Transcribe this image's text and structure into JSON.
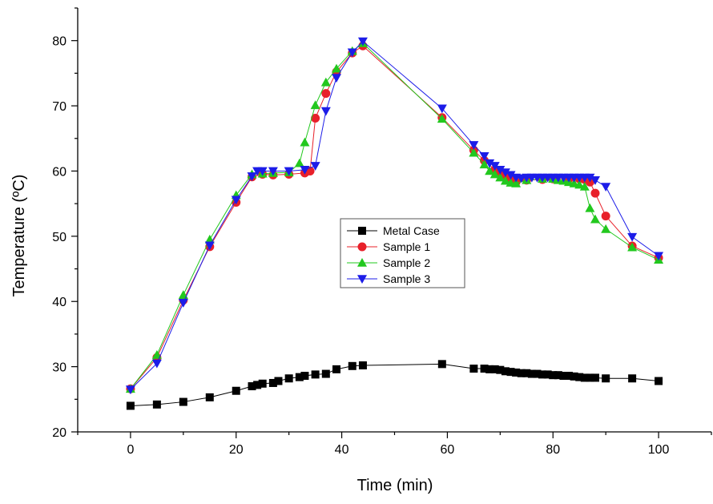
{
  "chart_data": {
    "type": "line",
    "title": "",
    "xlabel": "Time (min)",
    "ylabel": "Temperature (ºC)",
    "xlim": [
      -10,
      110
    ],
    "ylim": [
      20,
      85
    ],
    "xticks": [
      0,
      20,
      40,
      60,
      80,
      100
    ],
    "yticks": [
      20,
      30,
      40,
      50,
      60,
      70,
      80
    ],
    "xtick_labels": [
      "0",
      "20",
      "40",
      "60",
      "80",
      "100"
    ],
    "ytick_labels": [
      "20",
      "30",
      "40",
      "50",
      "60",
      "70",
      "80"
    ],
    "grid": false,
    "legend_position": "center-right",
    "series": [
      {
        "name": "Metal Case",
        "color": "#000000",
        "marker": "square",
        "x": [
          0,
          5,
          10,
          15,
          20,
          23,
          24,
          25,
          27,
          28,
          30,
          32,
          33,
          35,
          37,
          39,
          42,
          44,
          59,
          65,
          67,
          68,
          69,
          70,
          71,
          72,
          73,
          74,
          75,
          76,
          77,
          78,
          79,
          80,
          81,
          82,
          83,
          84,
          85,
          86,
          87,
          88,
          90,
          95,
          100
        ],
        "y": [
          24.0,
          24.2,
          24.6,
          25.3,
          26.3,
          27.0,
          27.2,
          27.4,
          27.5,
          27.8,
          28.2,
          28.4,
          28.6,
          28.8,
          28.9,
          29.6,
          30.1,
          30.2,
          30.4,
          29.7,
          29.7,
          29.6,
          29.6,
          29.5,
          29.3,
          29.2,
          29.1,
          29.0,
          29.0,
          28.9,
          28.9,
          28.8,
          28.8,
          28.7,
          28.7,
          28.6,
          28.6,
          28.5,
          28.4,
          28.3,
          28.3,
          28.3,
          28.2,
          28.2,
          27.8
        ]
      },
      {
        "name": "Sample 1",
        "color": "#e8202a",
        "marker": "circle",
        "x": [
          0,
          5,
          10,
          15,
          20,
          23,
          25,
          27,
          30,
          33,
          34,
          35,
          37,
          39,
          42,
          44,
          59,
          65,
          67,
          69,
          70,
          71,
          72,
          73,
          75,
          78,
          80,
          83,
          85,
          86,
          87,
          88,
          90,
          95,
          100
        ],
        "y": [
          26.6,
          31.4,
          40.2,
          48.4,
          55.2,
          59.1,
          59.5,
          59.4,
          59.5,
          59.7,
          60.0,
          68.1,
          71.9,
          75.2,
          78.1,
          79.2,
          68.2,
          63.2,
          61.6,
          60.2,
          59.8,
          59.4,
          58.8,
          58.3,
          58.6,
          58.7,
          58.8,
          58.8,
          58.8,
          58.7,
          58.3,
          56.6,
          53.1,
          48.5,
          46.7
        ]
      },
      {
        "name": "Sample 2",
        "color": "#22c81e",
        "marker": "triangle-up",
        "x": [
          0,
          5,
          10,
          15,
          20,
          23,
          25,
          27,
          30,
          32,
          33,
          35,
          37,
          39,
          42,
          44,
          59,
          65,
          67,
          68,
          69,
          70,
          71,
          72,
          73,
          75,
          78,
          80,
          81,
          82,
          83,
          84,
          85,
          86,
          87,
          88,
          90,
          95,
          100
        ],
        "y": [
          26.6,
          31.8,
          41.0,
          49.5,
          56.3,
          59.5,
          59.6,
          59.7,
          59.8,
          61.2,
          64.4,
          70.1,
          73.6,
          75.7,
          78.4,
          79.6,
          68.0,
          62.8,
          61.0,
          60.0,
          59.5,
          59.0,
          58.5,
          58.2,
          58.1,
          58.6,
          58.8,
          58.8,
          58.6,
          58.5,
          58.3,
          58.1,
          57.9,
          57.6,
          54.3,
          52.6,
          51.1,
          48.3,
          46.4
        ]
      },
      {
        "name": "Sample 3",
        "color": "#1c1ce8",
        "marker": "triangle-down",
        "x": [
          0,
          5,
          10,
          15,
          20,
          23,
          24,
          25,
          27,
          30,
          33,
          35,
          37,
          39,
          42,
          44,
          59,
          65,
          67,
          68,
          69,
          70,
          71,
          72,
          73,
          74,
          75,
          76,
          77,
          78,
          79,
          80,
          81,
          82,
          83,
          84,
          85,
          86,
          87,
          88,
          90,
          95,
          100
        ],
        "y": [
          26.5,
          30.5,
          39.8,
          48.6,
          55.6,
          59.2,
          60.0,
          60.0,
          60.0,
          60.0,
          60.2,
          60.8,
          69.2,
          74.3,
          78.2,
          79.9,
          69.6,
          64.0,
          62.3,
          61.2,
          60.8,
          60.2,
          59.8,
          59.4,
          59.0,
          58.9,
          59.0,
          59.0,
          59.0,
          59.0,
          59.0,
          59.0,
          59.0,
          59.0,
          59.0,
          59.0,
          59.0,
          59.0,
          59.0,
          58.6,
          57.6,
          49.9,
          47.0
        ]
      }
    ]
  }
}
